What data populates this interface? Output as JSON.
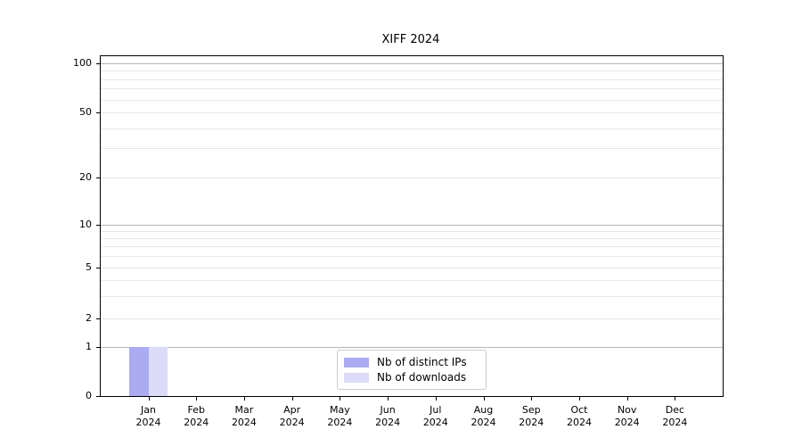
{
  "title": "XIFF 2024",
  "colors": {
    "background": "#ffffff",
    "spine": "#000000",
    "grid_major": "#b4b4b4",
    "grid_minor": "#e7e7e7",
    "bar_distinct_ips": "#ababf2",
    "bar_downloads": "#dcdcf8",
    "legend_border": "#cccccc",
    "text": "#000000"
  },
  "legend": {
    "position": "lower center",
    "items": [
      {
        "label": "Nb of distinct IPs",
        "color": "#ababf2"
      },
      {
        "label": "Nb of downloads",
        "color": "#dcdcf8"
      }
    ]
  },
  "chart_data": {
    "type": "bar",
    "title": "XIFF 2024",
    "xlabel": "",
    "ylabel": "",
    "categories": [
      "Jan",
      "Feb",
      "Mar",
      "Apr",
      "May",
      "Jun",
      "Jul",
      "Aug",
      "Sep",
      "Oct",
      "Nov",
      "Dec"
    ],
    "year_label": "2024",
    "series": [
      {
        "name": "Nb of distinct IPs",
        "color": "#ababf2",
        "values": [
          1,
          0,
          0,
          0,
          0,
          0,
          0,
          0,
          0,
          0,
          0,
          0
        ]
      },
      {
        "name": "Nb of downloads",
        "color": "#dcdcf8",
        "values": [
          1,
          0,
          0,
          0,
          0,
          0,
          0,
          0,
          0,
          0,
          0,
          0
        ]
      }
    ],
    "yscale": "symlog",
    "ylim": [
      0,
      110
    ],
    "y_tick_labels": [
      0,
      1,
      2,
      5,
      10,
      20,
      50,
      100
    ],
    "y_major_gridlines": [
      1,
      10,
      100
    ],
    "y_minor_gridlines": [
      2,
      3,
      4,
      5,
      6,
      7,
      8,
      9,
      20,
      30,
      40,
      50,
      60,
      70,
      80,
      90
    ],
    "grid": true,
    "legend_position": "lower center"
  }
}
